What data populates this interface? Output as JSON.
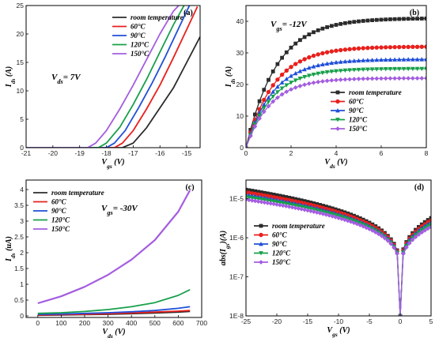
{
  "series_colors": [
    "#2b2b2b",
    "#e8201c",
    "#1f4fd8",
    "#17a04a",
    "#a45de0"
  ],
  "chart_data": [
    {
      "panel_label": "(a)",
      "type": "line",
      "markers": false,
      "xlabel": "V_gs (V)",
      "ylabel": "I_ds (A)",
      "xlim": [
        -21,
        -14.5
      ],
      "ylim": [
        0,
        25
      ],
      "xticks": [
        -21,
        -20,
        -19,
        -18,
        -17,
        -16,
        -15
      ],
      "yticks": [
        0,
        5,
        10,
        15,
        20,
        25
      ],
      "annotation": "V_ds = 7V",
      "legend": [
        "room temperature",
        "60°C",
        "90°C",
        "120°C",
        "150°C"
      ],
      "series": [
        {
          "name": "room temperature",
          "x": [
            -21,
            -17.4,
            -17.0,
            -16.5,
            -16.0,
            -15.5,
            -15.0,
            -14.5
          ],
          "y": [
            0,
            0,
            0.8,
            3.5,
            7.0,
            10.5,
            15.0,
            19.5
          ]
        },
        {
          "name": "60°C",
          "x": [
            -21,
            -17.7,
            -17.4,
            -17.0,
            -16.5,
            -16.0,
            -15.5,
            -15.0,
            -14.6
          ],
          "y": [
            0,
            0,
            0.8,
            3.0,
            6.8,
            11.0,
            15.8,
            20.8,
            24.8
          ]
        },
        {
          "name": "90°C",
          "x": [
            -21,
            -18.0,
            -17.7,
            -17.3,
            -16.8,
            -16.3,
            -15.8,
            -15.3,
            -14.9
          ],
          "y": [
            0,
            0,
            0.8,
            3.0,
            7.0,
            11.3,
            16.0,
            21.0,
            25.0
          ]
        },
        {
          "name": "120°C",
          "x": [
            -21,
            -18.3,
            -18.0,
            -17.5,
            -17.0,
            -16.5,
            -16.0,
            -15.5,
            -15.1
          ],
          "y": [
            0,
            0,
            0.8,
            3.6,
            7.6,
            12.0,
            16.8,
            21.6,
            25.0
          ]
        },
        {
          "name": "150°C",
          "x": [
            -21,
            -18.7,
            -18.4,
            -18.0,
            -17.5,
            -17.0,
            -16.5,
            -16.0,
            -15.5,
            -15.3
          ],
          "y": [
            0,
            0,
            0.8,
            3.0,
            6.8,
            11.0,
            15.5,
            20.0,
            24.0,
            25.0
          ]
        }
      ]
    },
    {
      "panel_label": "(b)",
      "type": "line",
      "markers": true,
      "xlabel": "V_ds (V)",
      "ylabel": "I_ds (A)",
      "xlim": [
        0,
        8
      ],
      "ylim": [
        0,
        45
      ],
      "xticks": [
        0,
        2,
        4,
        6,
        8
      ],
      "yticks": [
        0,
        10,
        20,
        30,
        40
      ],
      "annotation": "V_gs = -12V",
      "legend": [
        "room temperature",
        "60°C",
        "90°C",
        "120°C",
        "150°C"
      ],
      "series": [
        {
          "name": "room temperature",
          "saturation": 41,
          "tau": 1.35
        },
        {
          "name": "60°C",
          "saturation": 32,
          "tau": 1.25
        },
        {
          "name": "90°C",
          "saturation": 28,
          "tau": 1.2
        },
        {
          "name": "120°C",
          "saturation": 25,
          "tau": 1.15
        },
        {
          "name": "150°C",
          "saturation": 22,
          "tau": 1.1
        }
      ]
    },
    {
      "panel_label": "(c)",
      "type": "line",
      "markers": false,
      "xlabel": "V_ds (V)",
      "ylabel": "I_ds (uA)",
      "xlim": [
        -50,
        700
      ],
      "ylim": [
        -0.05,
        4.3
      ],
      "xticks": [
        0,
        100,
        200,
        300,
        400,
        500,
        600,
        700
      ],
      "yticks": [
        0.0,
        0.5,
        1.0,
        1.5,
        2.0,
        2.5,
        3.0,
        3.5,
        4.0
      ],
      "annotation": "V_gs = -30V",
      "legend": [
        "room temperature",
        "60°C",
        "90°C",
        "120°C",
        "150°C"
      ],
      "series": [
        {
          "name": "room temperature",
          "x": [
            0,
            100,
            200,
            300,
            400,
            500,
            600,
            650
          ],
          "y": [
            0.02,
            0.03,
            0.04,
            0.05,
            0.07,
            0.09,
            0.12,
            0.14
          ]
        },
        {
          "name": "60°C",
          "x": [
            0,
            100,
            200,
            300,
            400,
            500,
            600,
            650
          ],
          "y": [
            0.03,
            0.04,
            0.05,
            0.07,
            0.09,
            0.12,
            0.15,
            0.17
          ]
        },
        {
          "name": "90°C",
          "x": [
            0,
            100,
            200,
            300,
            400,
            500,
            600,
            650
          ],
          "y": [
            0.05,
            0.06,
            0.08,
            0.1,
            0.13,
            0.17,
            0.24,
            0.29
          ]
        },
        {
          "name": "120°C",
          "x": [
            0,
            100,
            200,
            300,
            400,
            500,
            600,
            650
          ],
          "y": [
            0.08,
            0.1,
            0.14,
            0.2,
            0.29,
            0.42,
            0.65,
            0.83
          ]
        },
        {
          "name": "150°C",
          "x": [
            0,
            100,
            200,
            300,
            400,
            500,
            600,
            650
          ],
          "y": [
            0.4,
            0.62,
            0.92,
            1.3,
            1.78,
            2.4,
            3.3,
            3.98
          ]
        }
      ]
    },
    {
      "panel_label": "(d)",
      "type": "line",
      "markers": true,
      "log_y": true,
      "xlabel": "V_gs (V)",
      "ylabel": "abs(I_gs)(A)",
      "xlim": [
        -25,
        5
      ],
      "ylim": [
        1e-08,
        3e-05
      ],
      "xticks": [
        -25,
        -20,
        -15,
        -10,
        -5,
        0,
        5
      ],
      "yticks": [
        1e-08,
        1e-07,
        1e-06,
        1e-05
      ],
      "ytick_labels": [
        "1E-8",
        "1E-7",
        "1E-6",
        "1E-5"
      ],
      "legend": [
        "room temperature",
        "60°C",
        "90°C",
        "120°C",
        "150°C"
      ],
      "series": [
        {
          "name": "room temperature",
          "at_minus25": 1.7e-05,
          "at_plus5": 3.2e-06
        },
        {
          "name": "60°C",
          "at_minus25": 1.45e-05,
          "at_plus5": 2.8e-06
        },
        {
          "name": "90°C",
          "at_minus25": 1.25e-05,
          "at_plus5": 2.5e-06
        },
        {
          "name": "120°C",
          "at_minus25": 1.1e-05,
          "at_plus5": 2.2e-06
        },
        {
          "name": "150°C",
          "at_minus25": 9.5e-06,
          "at_plus5": 1.9e-06
        }
      ]
    }
  ]
}
